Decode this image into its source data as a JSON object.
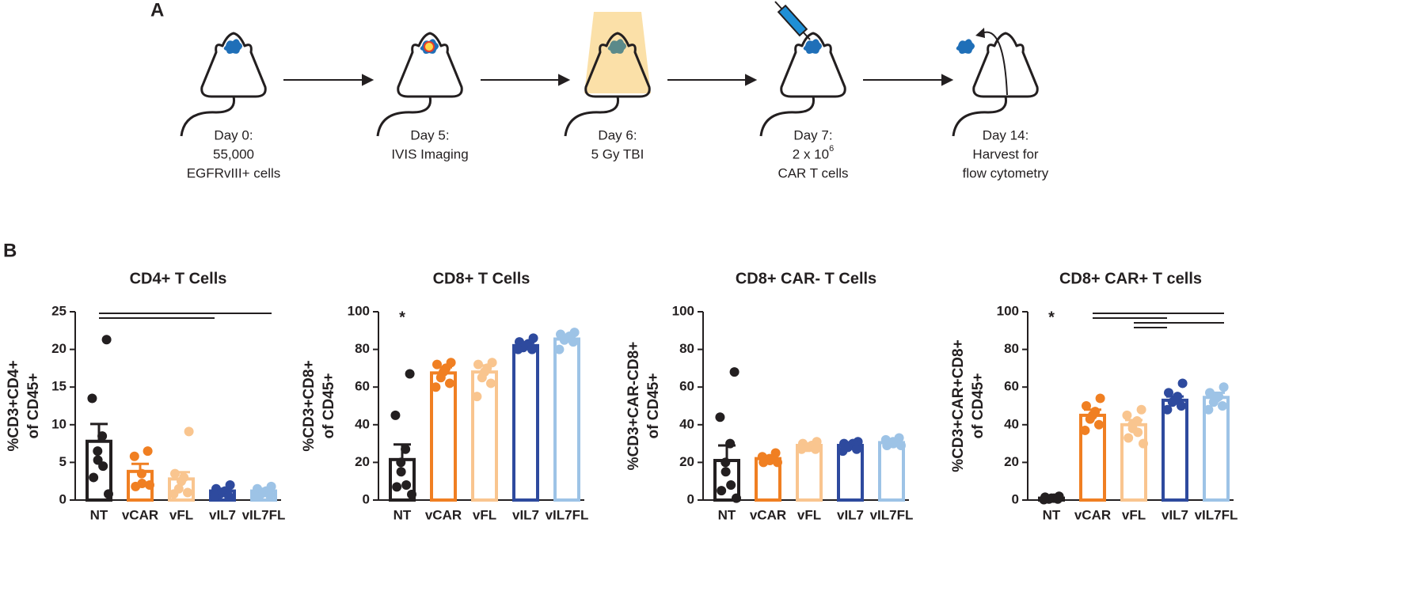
{
  "panel_a": {
    "label": "A",
    "steps": [
      {
        "lines": [
          "Day 0:",
          "55,000",
          "EGFRvIII+ cells"
        ]
      },
      {
        "lines": [
          "Day 5:",
          "IVIS Imaging"
        ]
      },
      {
        "lines": [
          "Day 6:",
          "5 Gy TBI"
        ]
      },
      {
        "lines": [
          "Day 7:",
          "2 x 10",
          "CAR T cells"
        ],
        "exponent": "6"
      },
      {
        "lines": [
          "Day 14:",
          "Harvest for",
          "flow cytometry"
        ]
      }
    ]
  },
  "panel_b": {
    "label": "B"
  },
  "chart_data": [
    {
      "type": "bar",
      "title": "CD4+ T Cells",
      "ylabel": [
        "%CD3+CD4+",
        "of CD45+"
      ],
      "categories": [
        "NT",
        "vCAR",
        "vFL",
        "vIL7",
        "vIL7FL"
      ],
      "colors": [
        "#231f20",
        "#f07f22",
        "#f9c58f",
        "#2e4a9e",
        "#9dc3e6"
      ],
      "values": [
        7.8,
        3.8,
        2.8,
        1.2,
        1.2
      ],
      "errors": [
        2.3,
        1.0,
        0.9,
        0.3,
        0.3
      ],
      "points": [
        [
          21.3,
          13.5,
          8.5,
          6.5,
          5.3,
          4.5,
          3.0,
          0.8
        ],
        [
          6.5,
          5.8,
          3.5,
          2.2,
          1.8,
          2.0
        ],
        [
          9.1,
          3.5,
          3.0,
          2.5,
          1.5,
          1.0,
          0.8
        ],
        [
          2.0,
          1.5,
          1.2,
          1.0,
          0.8,
          0.5,
          0.5
        ],
        [
          1.8,
          1.5,
          1.2,
          1.0,
          0.8,
          0.6,
          0.5
        ]
      ],
      "ylim": [
        0,
        25
      ],
      "yticks": [
        0,
        5,
        10,
        15,
        20,
        25
      ],
      "comparisons": [
        [
          "NT",
          "vIL7FL"
        ],
        [
          "NT",
          "vIL7"
        ]
      ]
    },
    {
      "type": "bar",
      "title": "CD8+ T Cells",
      "ylabel": [
        "%CD3+CD8+",
        "of CD45+"
      ],
      "categories": [
        "NT",
        "vCAR",
        "vFL",
        "vIL7",
        "vIL7FL"
      ],
      "colors": [
        "#231f20",
        "#f07f22",
        "#f9c58f",
        "#2e4a9e",
        "#9dc3e6"
      ],
      "values": [
        21.5,
        67.5,
        68,
        82,
        85.5
      ],
      "errors": [
        8,
        3,
        3.5,
        1.5,
        1.5
      ],
      "points": [
        [
          67,
          45,
          27,
          20,
          15,
          8,
          7,
          3
        ],
        [
          73,
          72,
          70,
          68,
          65,
          62,
          60
        ],
        [
          73,
          72,
          70,
          68,
          65,
          62,
          55
        ],
        [
          86,
          84,
          83,
          82,
          81,
          80,
          80
        ],
        [
          89,
          88,
          87,
          86,
          85,
          84,
          80
        ]
      ],
      "ylim": [
        0,
        100
      ],
      "yticks": [
        0,
        20,
        40,
        60,
        80,
        100
      ],
      "annotations": [
        {
          "text": "*",
          "category": "NT"
        }
      ]
    },
    {
      "type": "bar",
      "title": "CD8+ CAR- T Cells",
      "ylabel": [
        "%CD3+CAR-CD8+",
        "of CD45+"
      ],
      "categories": [
        "NT",
        "vCAR",
        "vFL",
        "vIL7",
        "vIL7FL"
      ],
      "colors": [
        "#231f20",
        "#f07f22",
        "#f9c58f",
        "#2e4a9e",
        "#9dc3e6"
      ],
      "values": [
        21,
        22,
        29,
        29,
        30.5
      ],
      "errors": [
        8,
        1.5,
        1,
        1,
        1
      ],
      "points": [
        [
          68,
          44,
          30,
          20,
          15,
          8,
          5,
          1
        ],
        [
          25,
          23,
          22,
          21,
          20,
          20
        ],
        [
          31,
          30,
          29,
          28,
          28,
          27,
          27
        ],
        [
          31,
          30,
          30,
          29,
          28,
          27,
          26
        ],
        [
          33,
          32,
          31,
          30,
          29,
          29
        ]
      ],
      "ylim": [
        0,
        100
      ],
      "yticks": [
        0,
        20,
        40,
        60,
        80,
        100
      ]
    },
    {
      "type": "bar",
      "title": "CD8+ CAR+ T cells",
      "ylabel": [
        "%CD3+CAR+CD8+",
        "of CD45+"
      ],
      "categories": [
        "NT",
        "vCAR",
        "vFL",
        "vIL7",
        "vIL7FL"
      ],
      "colors": [
        "#231f20",
        "#f07f22",
        "#f9c58f",
        "#2e4a9e",
        "#9dc3e6"
      ],
      "values": [
        1,
        45,
        40,
        53,
        54.5
      ],
      "errors": [
        0.3,
        3,
        2.5,
        2,
        2.5
      ],
      "points": [
        [
          2,
          1.5,
          1,
          1,
          0.5,
          0.5,
          0.2
        ],
        [
          54,
          50,
          47,
          45,
          43,
          40,
          37
        ],
        [
          48,
          45,
          42,
          40,
          38,
          36,
          33,
          30
        ],
        [
          62,
          57,
          55,
          53,
          52,
          50,
          48
        ],
        [
          60,
          57,
          55,
          54,
          52,
          50,
          48
        ]
      ],
      "ylim": [
        0,
        100
      ],
      "yticks": [
        0,
        20,
        40,
        60,
        80,
        100
      ],
      "annotations": [
        {
          "text": "*",
          "category": "NT"
        }
      ],
      "comparisons": [
        [
          "vCAR",
          "vIL7FL"
        ],
        [
          "vCAR",
          "vIL7"
        ],
        [
          "vFL",
          "vIL7FL"
        ],
        [
          "vFL",
          "vIL7"
        ]
      ]
    }
  ]
}
